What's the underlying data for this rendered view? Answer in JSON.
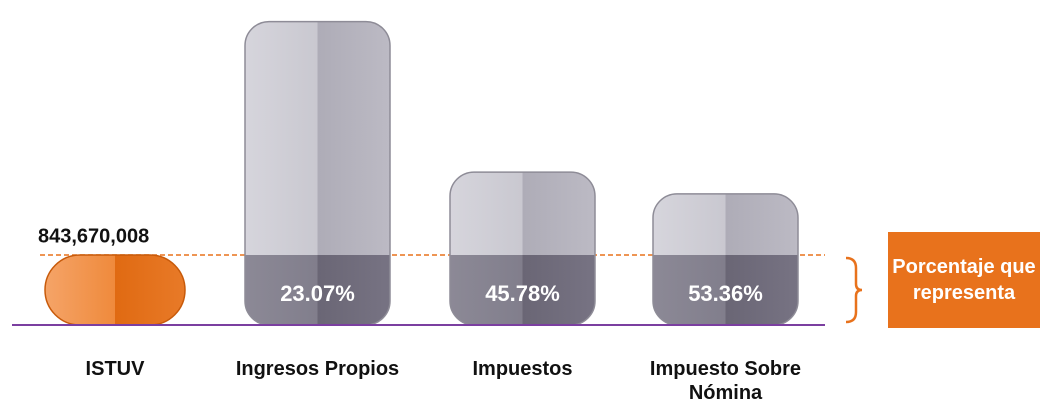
{
  "chart_data": {
    "type": "bar",
    "reference": {
      "category": "ISTUV",
      "value": 843670008,
      "value_label": "843,670,008",
      "color": "#e8721c"
    },
    "categories": [
      "Ingresos Propios",
      "Impuestos",
      "Impuesto Sobre Nómina"
    ],
    "values": [
      23.07,
      45.78,
      53.36
    ],
    "value_labels": [
      "23.07%",
      "45.78%",
      "53.36%"
    ],
    "color": "#b4b2bd",
    "annotation": "Porcentaje que representa",
    "annotation_color": "#e8721c",
    "baseline_color": "#7b3fa0"
  }
}
